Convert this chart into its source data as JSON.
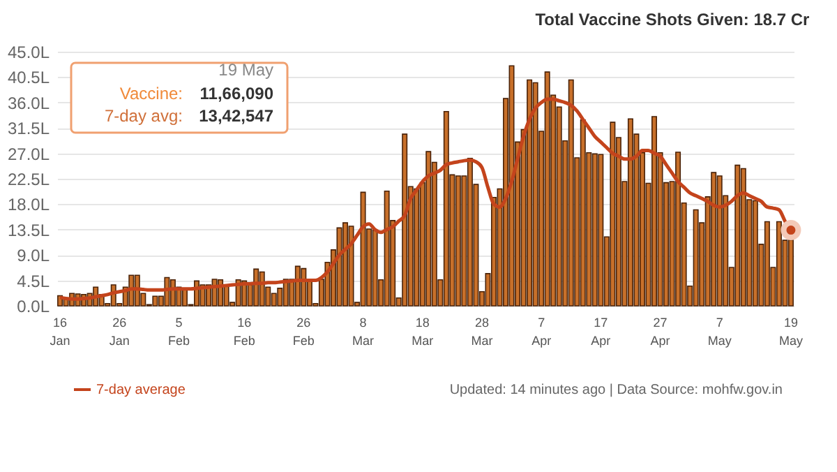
{
  "chart_data": {
    "type": "bar",
    "title": "Total Vaccine Shots Given: 18.7 Cr",
    "categories": [
      "16 Jan",
      null,
      null,
      null,
      null,
      null,
      null,
      null,
      null,
      null,
      "26 Jan",
      null,
      null,
      null,
      null,
      null,
      null,
      null,
      null,
      null,
      "5 Feb",
      null,
      null,
      null,
      null,
      null,
      null,
      null,
      null,
      null,
      null,
      "16 Feb",
      null,
      null,
      null,
      null,
      null,
      null,
      null,
      null,
      null,
      "26 Feb",
      null,
      null,
      null,
      null,
      null,
      null,
      null,
      null,
      null,
      "8 Mar",
      null,
      null,
      null,
      null,
      null,
      null,
      null,
      null,
      null,
      "18 Mar",
      null,
      null,
      null,
      null,
      null,
      null,
      null,
      null,
      null,
      "28 Mar",
      null,
      null,
      null,
      null,
      null,
      null,
      null,
      null,
      null,
      "7 Apr",
      null,
      null,
      null,
      null,
      null,
      null,
      null,
      null,
      null,
      "17 Apr",
      null,
      null,
      null,
      null,
      null,
      null,
      null,
      null,
      null,
      "27 Apr",
      null,
      null,
      null,
      null,
      null,
      null,
      null,
      null,
      null,
      "7 May",
      null,
      null,
      null,
      null,
      null,
      null,
      null,
      null,
      null,
      null,
      null,
      "19 May"
    ],
    "series": [
      {
        "color": "#c8702a",
        "values": [
          1.8,
          1.2,
          2.2,
          2.1,
          2.0,
          2.2,
          3.3,
          2.0,
          0.4,
          3.7,
          0.4,
          3.3,
          5.4,
          5.4,
          2.2,
          0.2,
          1.7,
          1.7,
          5.0,
          4.6,
          3.3,
          3.1,
          0.2,
          4.4,
          3.7,
          3.7,
          4.7,
          4.6,
          3.7,
          0.6,
          4.6,
          4.4,
          3.7,
          6.5,
          6.0,
          3.3,
          2.2,
          3.1,
          4.7,
          4.7,
          7.0,
          6.6,
          4.7,
          0.4,
          4.7,
          7.7,
          9.9,
          13.8,
          14.7,
          14.1,
          0.6,
          20.1,
          13.6,
          13.4,
          4.6,
          20.3,
          15.1,
          1.4,
          30.4,
          21.1,
          20.7,
          21.8,
          27.3,
          25.4,
          4.6,
          34.4,
          23.2,
          23.0,
          23.0,
          26.1,
          21.5,
          2.5,
          5.7,
          19.2,
          20.7,
          36.7,
          42.5,
          29.0,
          31.2,
          40.0,
          39.5,
          30.9,
          41.4,
          37.3,
          35.2,
          29.2,
          40.0,
          26.2,
          32.9,
          27.1,
          26.9,
          26.8,
          12.2,
          32.5,
          29.8,
          22.0,
          33.1,
          30.4,
          27.1,
          21.7,
          33.5,
          27.1,
          21.8,
          22.0,
          27.2,
          18.2,
          3.5,
          17.0,
          14.7,
          19.3,
          23.6,
          23.0,
          19.5,
          6.8,
          24.9,
          24.3,
          18.8,
          18.6,
          10.9,
          14.9,
          6.8,
          14.9,
          11.6,
          11.7
        ]
      },
      {
        "type": "line",
        "name": "7-day average",
        "color": "#c4441c",
        "values": [
          1.5,
          1.3,
          1.2,
          1.2,
          1.3,
          1.4,
          1.6,
          1.8,
          2.0,
          2.3,
          2.5,
          2.7,
          3.0,
          3.0,
          2.9,
          2.8,
          2.8,
          2.8,
          2.9,
          3.0,
          3.0,
          3.0,
          3.0,
          3.1,
          3.2,
          3.3,
          3.4,
          3.5,
          3.6,
          3.7,
          3.8,
          3.9,
          3.9,
          4.0,
          4.0,
          4.1,
          4.1,
          4.2,
          4.3,
          4.4,
          4.5,
          4.5,
          4.5,
          4.5,
          5.0,
          6.0,
          7.5,
          9.0,
          10.0,
          11.0,
          12.5,
          14.0,
          14.5,
          13.5,
          13.0,
          13.5,
          14.0,
          15.0,
          16.0,
          19.0,
          20.5,
          22.0,
          23.0,
          23.5,
          24.0,
          25.0,
          25.3,
          25.5,
          25.7,
          25.8,
          25.5,
          24.5,
          21.0,
          18.0,
          17.5,
          19.0,
          22.0,
          26.0,
          30.0,
          33.0,
          35.0,
          36.0,
          36.6,
          36.6,
          36.3,
          36.0,
          35.5,
          34.5,
          33.0,
          31.5,
          30.0,
          29.0,
          28.0,
          27.0,
          26.5,
          26.0,
          26.0,
          26.5,
          27.5,
          27.5,
          27.0,
          26.5,
          25.0,
          23.5,
          22.0,
          21.0,
          20.0,
          19.5,
          19.0,
          18.5,
          17.8,
          17.5,
          17.8,
          18.5,
          19.5,
          20.0,
          19.5,
          19.0,
          18.5,
          17.5,
          17.3,
          17.0,
          15.0,
          13.4
        ]
      }
    ],
    "ylim": [
      0,
      45
    ],
    "yticks": [
      {
        "value": 0,
        "label": "0.0L"
      },
      {
        "value": 4.5,
        "label": "4.5L"
      },
      {
        "value": 9,
        "label": "9.0L"
      },
      {
        "value": 13.5,
        "label": "13.5L"
      },
      {
        "value": 18,
        "label": "18.0L"
      },
      {
        "value": 22.5,
        "label": "22.5L"
      },
      {
        "value": 27,
        "label": "27.0L"
      },
      {
        "value": 31.5,
        "label": "31.5L"
      },
      {
        "value": 36,
        "label": "36.0L"
      },
      {
        "value": 40.5,
        "label": "40.5L"
      },
      {
        "value": 45,
        "label": "45.0L"
      }
    ],
    "grid": "y",
    "legend": "bottom left",
    "annotations": [
      "19 May",
      "Vaccine:",
      "11,66,090",
      "7-day avg:",
      "13,42,547",
      "Updated: 14 minutes ago | Data Source: mohfw.gov.in"
    ]
  }
}
